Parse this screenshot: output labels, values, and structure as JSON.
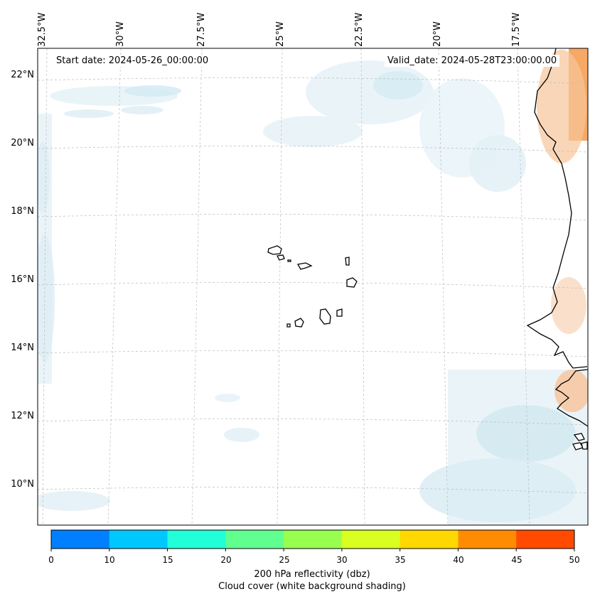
{
  "map": {
    "start_date": "Start date: 2024-05-26_00:00:00",
    "valid_date": "Valid_date: 2024-05-28T23:00:00.00",
    "lon_labels": [
      "32.5°W",
      "30°W",
      "27.5°W",
      "25°W",
      "22.5°W",
      "20°W",
      "17.5°W"
    ],
    "lat_labels": [
      "22°N",
      "20°N",
      "18°N",
      "16°N",
      "14°N",
      "12°N",
      "10°N"
    ],
    "region": "Cape Verde islands and West African coast"
  },
  "colorbar": {
    "ticks": [
      "0",
      "10",
      "15",
      "20",
      "25",
      "30",
      "35",
      "40",
      "45",
      "50"
    ],
    "colors": [
      "#0080ff",
      "#00c8ff",
      "#20ffd8",
      "#60ff90",
      "#98ff50",
      "#d8ff20",
      "#ffd800",
      "#ff8c00",
      "#ff4a00"
    ],
    "label_line1": "200 hPa reflectivity (dbz)",
    "label_line2": "Cloud cover (white background shading)"
  }
}
